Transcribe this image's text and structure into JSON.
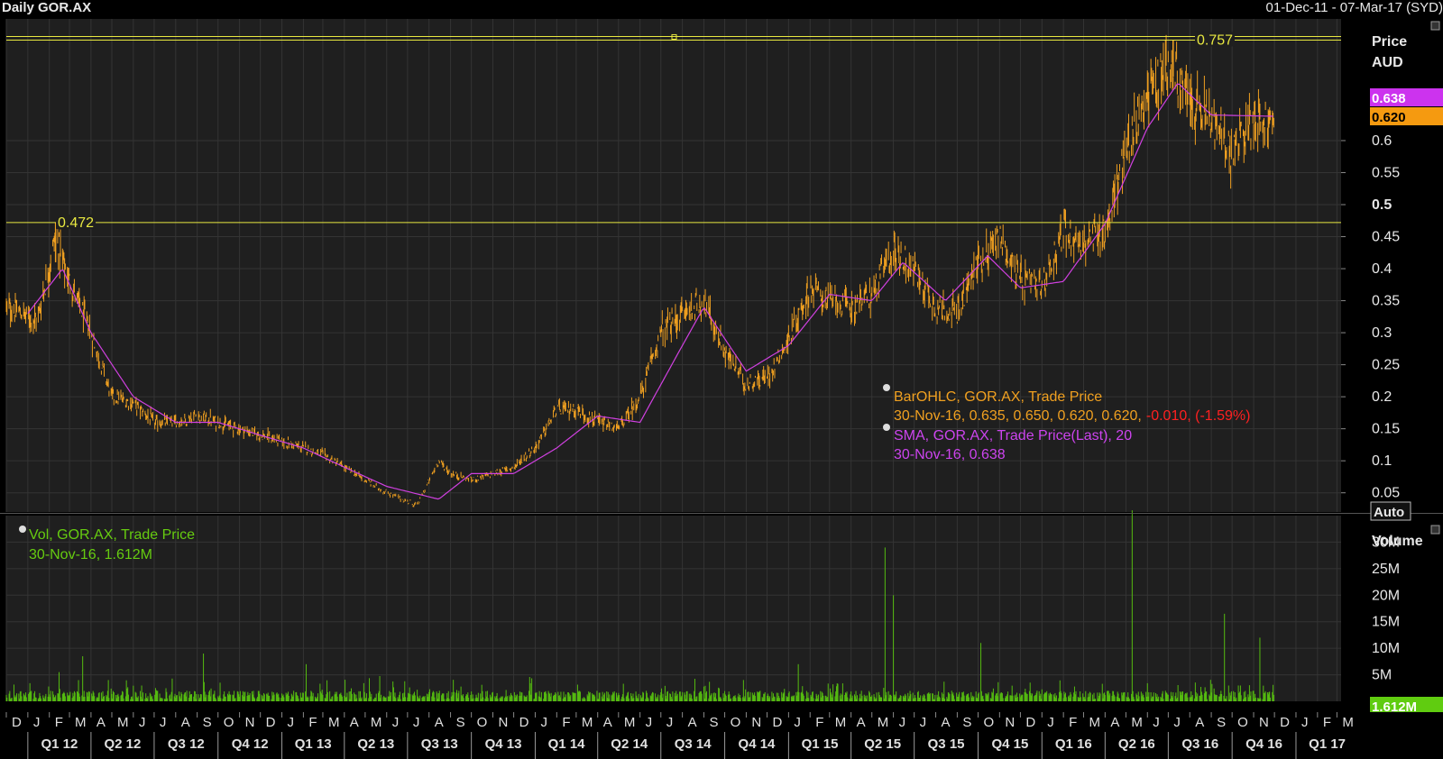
{
  "window": {
    "title": "Daily GOR.AX",
    "date_range": "01-Dec-11 - 07-Mar-17 (SYD)"
  },
  "price_panel": {
    "axis_title_1": "Price",
    "axis_title_2": "AUD",
    "auto_button": "Auto",
    "ticks": [
      "0.6",
      "0.55",
      "0.5",
      "0.45",
      "0.4",
      "0.35",
      "0.3",
      "0.25",
      "0.2",
      "0.15",
      "0.1",
      "0.05"
    ],
    "sma_last_badge": "0.638",
    "close_last_badge": "0.620",
    "hline_high_label": "0.757",
    "hline_low_label": "0.472",
    "legend": {
      "ohlc_title": "BarOHLC, GOR.AX, Trade Price",
      "ohlc_values": "30-Nov-16, 0.635, 0.650, 0.620, 0.620,",
      "ohlc_change": "-0.010, (-1.59%)",
      "sma_title": "SMA, GOR.AX, Trade Price(Last),  20",
      "sma_values": "30-Nov-16, 0.638"
    }
  },
  "volume_panel": {
    "axis_title": "Volume",
    "ticks": [
      "30M",
      "25M",
      "20M",
      "15M",
      "10M",
      "5M"
    ],
    "last_badge": "1.612M",
    "auto_button": "Auto",
    "legend_title": "Vol, GOR.AX, Trade Price",
    "legend_values": "30-Nov-16, 1.612M"
  },
  "x_axis": {
    "months": [
      "D",
      "J",
      "F",
      "M",
      "A",
      "M",
      "J",
      "J",
      "A",
      "S",
      "O",
      "N",
      "D",
      "J",
      "F",
      "M",
      "A",
      "M",
      "J",
      "J",
      "A",
      "S",
      "O",
      "N",
      "D",
      "J",
      "F",
      "M",
      "A",
      "M",
      "J",
      "J",
      "A",
      "S",
      "O",
      "N",
      "D",
      "J",
      "F",
      "M",
      "A",
      "M",
      "J",
      "J",
      "A",
      "S",
      "O",
      "N",
      "D",
      "J",
      "F",
      "M",
      "A",
      "M",
      "J",
      "J",
      "A",
      "S",
      "O",
      "N",
      "D",
      "J",
      "F",
      "M"
    ],
    "quarters": [
      "Q1 12",
      "Q2 12",
      "Q3 12",
      "Q4 12",
      "Q1 13",
      "Q2 13",
      "Q3 13",
      "Q4 13",
      "Q1 14",
      "Q2 14",
      "Q3 14",
      "Q4 14",
      "Q1 15",
      "Q2 15",
      "Q3 15",
      "Q4 15",
      "Q1 16",
      "Q2 16",
      "Q3 16",
      "Q4 16",
      "Q1 17"
    ]
  },
  "colors": {
    "background": "#1f1f1f",
    "grid": "#343434",
    "price_bars": "#f0a020",
    "sma": "#d040e0",
    "volume": "#55bb10",
    "hline": "#e8e840",
    "down": "#ff2020"
  },
  "chart_data": {
    "type": "line",
    "title": "Daily GOR.AX",
    "ylabel": "Price AUD",
    "ylim": [
      0.02,
      0.79
    ],
    "x_range": [
      "01-Dec-11",
      "07-Mar-17"
    ],
    "series": [
      {
        "name": "BarOHLC, GOR.AX, Trade Price",
        "x": [
          "2011-12-01",
          "2012-01-15",
          "2012-02-10",
          "2012-03-01",
          "2012-04-01",
          "2012-05-01",
          "2012-06-01",
          "2012-07-01",
          "2012-08-01",
          "2012-09-01",
          "2012-10-01",
          "2012-11-01",
          "2012-12-01",
          "2013-01-01",
          "2013-02-01",
          "2013-03-01",
          "2013-04-01",
          "2013-05-01",
          "2013-06-01",
          "2013-07-15",
          "2013-08-15",
          "2013-09-01",
          "2013-10-01",
          "2013-11-01",
          "2013-12-01",
          "2014-01-01",
          "2014-02-01",
          "2014-03-01",
          "2014-04-01",
          "2014-05-01",
          "2014-06-01",
          "2014-07-01",
          "2014-08-01",
          "2014-09-01",
          "2014-10-01",
          "2014-11-01",
          "2014-12-01",
          "2015-01-01",
          "2015-02-01",
          "2015-03-01",
          "2015-04-01",
          "2015-05-01",
          "2015-06-01",
          "2015-07-01",
          "2015-08-01",
          "2015-09-01",
          "2015-10-01",
          "2015-11-01",
          "2015-12-01",
          "2016-01-01",
          "2016-02-01",
          "2016-03-01",
          "2016-04-01",
          "2016-05-01",
          "2016-06-01",
          "2016-07-01",
          "2016-08-01",
          "2016-09-01",
          "2016-10-01",
          "2016-11-01",
          "2016-11-30"
        ],
        "values": [
          0.34,
          0.32,
          0.45,
          0.38,
          0.3,
          0.2,
          0.19,
          0.16,
          0.16,
          0.17,
          0.16,
          0.15,
          0.14,
          0.13,
          0.12,
          0.11,
          0.09,
          0.07,
          0.05,
          0.03,
          0.1,
          0.08,
          0.07,
          0.08,
          0.09,
          0.12,
          0.18,
          0.18,
          0.16,
          0.15,
          0.2,
          0.3,
          0.33,
          0.35,
          0.27,
          0.22,
          0.23,
          0.29,
          0.37,
          0.35,
          0.34,
          0.36,
          0.43,
          0.4,
          0.34,
          0.33,
          0.41,
          0.45,
          0.38,
          0.37,
          0.46,
          0.44,
          0.46,
          0.58,
          0.68,
          0.72,
          0.66,
          0.63,
          0.58,
          0.64,
          0.62
        ]
      },
      {
        "name": "SMA, GOR.AX, Trade Price(Last),  20",
        "x": [
          "2012-01-01",
          "2012-02-20",
          "2012-04-01",
          "2012-06-01",
          "2012-08-01",
          "2012-10-01",
          "2012-12-01",
          "2013-02-01",
          "2013-04-01",
          "2013-06-01",
          "2013-08-15",
          "2013-10-01",
          "2013-12-01",
          "2014-02-01",
          "2014-04-01",
          "2014-06-01",
          "2014-08-01",
          "2014-09-01",
          "2014-11-01",
          "2015-01-01",
          "2015-03-01",
          "2015-05-01",
          "2015-06-15",
          "2015-08-15",
          "2015-10-15",
          "2015-12-01",
          "2016-02-01",
          "2016-04-01",
          "2016-06-01",
          "2016-07-15",
          "2016-09-01",
          "2016-11-30"
        ],
        "values": [
          0.33,
          0.4,
          0.3,
          0.2,
          0.16,
          0.16,
          0.14,
          0.12,
          0.09,
          0.06,
          0.04,
          0.08,
          0.08,
          0.12,
          0.17,
          0.16,
          0.28,
          0.34,
          0.24,
          0.28,
          0.36,
          0.35,
          0.41,
          0.35,
          0.42,
          0.37,
          0.38,
          0.47,
          0.62,
          0.69,
          0.64,
          0.638
        ]
      }
    ],
    "volume": {
      "ylabel": "Volume",
      "ylim": [
        0,
        35
      ],
      "unit": "M",
      "last": 1.612,
      "spikes": [
        {
          "x": "2012-02-15",
          "value": 5.5
        },
        {
          "x": "2012-03-20",
          "value": 8.5
        },
        {
          "x": "2012-09-10",
          "value": 9
        },
        {
          "x": "2013-02-05",
          "value": 7
        },
        {
          "x": "2013-09-15",
          "value": 9
        },
        {
          "x": "2014-03-01",
          "value": 6
        },
        {
          "x": "2014-07-20",
          "value": 8
        },
        {
          "x": "2015-01-15",
          "value": 7
        },
        {
          "x": "2015-05-20",
          "value": 29
        },
        {
          "x": "2015-06-01",
          "value": 20
        },
        {
          "x": "2015-10-05",
          "value": 11
        },
        {
          "x": "2016-05-10",
          "value": 36
        },
        {
          "x": "2016-09-20",
          "value": 16.5
        },
        {
          "x": "2016-11-10",
          "value": 12
        }
      ]
    },
    "horizontal_lines": [
      0.757,
      0.472
    ],
    "grid": true
  }
}
